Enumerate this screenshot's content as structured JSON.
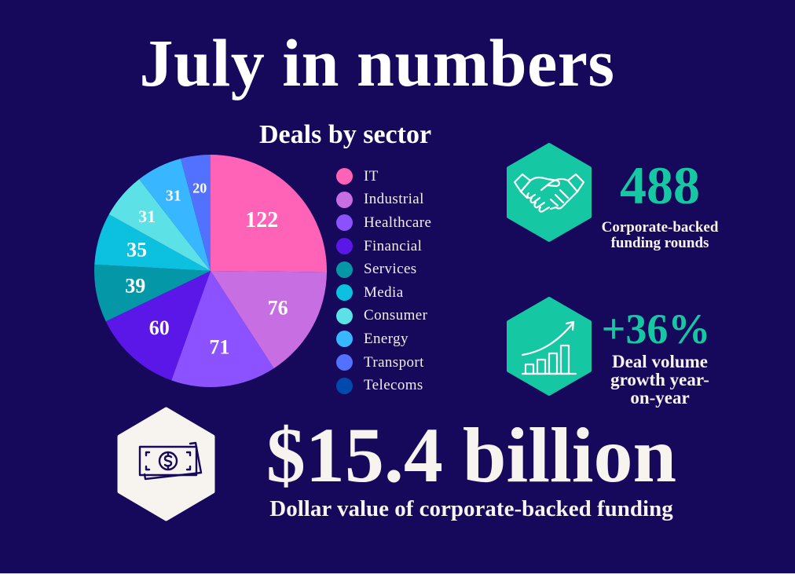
{
  "title": "July in numbers",
  "colors": {
    "background": "#16085a",
    "accent": "#16c7a4",
    "text": "#f7f3ee"
  },
  "chart_data": {
    "type": "pie",
    "title": "Deals by sector",
    "categories": [
      "IT",
      "Industrial",
      "Healthcare",
      "Financial",
      "Services",
      "Media",
      "Consumer",
      "Energy",
      "Transport",
      "Telecoms"
    ],
    "values": [
      122,
      76,
      71,
      60,
      39,
      35,
      31,
      31,
      20,
      null
    ],
    "labels_shown": [
      "122",
      "76",
      "71",
      "60",
      "39",
      "35",
      "31",
      "31",
      "20",
      ""
    ],
    "colors": [
      "#ff63b8",
      "#c86ee3",
      "#8c52ff",
      "#5a17e8",
      "#0397a8",
      "#0cc0df",
      "#5ce1e6",
      "#38b6ff",
      "#5271ff",
      "#004aad"
    ],
    "legend_position": "right",
    "start_angle": "12 o'clock",
    "direction": "clockwise"
  },
  "legend": [
    {
      "label": "IT",
      "color": "#ff63b8"
    },
    {
      "label": "Industrial",
      "color": "#c86ee3"
    },
    {
      "label": "Healthcare",
      "color": "#8c52ff"
    },
    {
      "label": "Financial",
      "color": "#5a17e8"
    },
    {
      "label": "Services",
      "color": "#0397a8"
    },
    {
      "label": "Media",
      "color": "#0cc0df"
    },
    {
      "label": "Consumer",
      "color": "#5ce1e6"
    },
    {
      "label": "Energy",
      "color": "#38b6ff"
    },
    {
      "label": "Transport",
      "color": "#5271ff"
    },
    {
      "label": "Telecoms",
      "color": "#004aad"
    }
  ],
  "stats": {
    "rounds": {
      "icon": "handshake-icon",
      "value": "488",
      "label_line1": "Corporate-backed",
      "label_line2": "funding rounds"
    },
    "growth": {
      "icon": "growth-chart-icon",
      "value": "+36%",
      "label_line1": "Deal volume",
      "label_line2": "growth year-",
      "label_line3": "on-year"
    },
    "dollar": {
      "icon": "money-bills-icon",
      "value": "$15.4 billion",
      "label": "Dollar value of corporate-backed funding"
    }
  }
}
